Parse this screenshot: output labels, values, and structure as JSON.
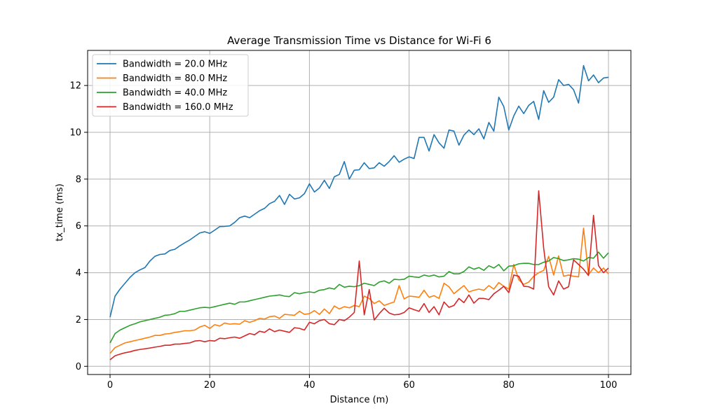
{
  "chart_data": {
    "type": "line",
    "title": "Average Transmission Time vs Distance for Wi-Fi 6",
    "xlabel": "Distance (m)",
    "ylabel": "tx_time (ms)",
    "xlim": [
      -4.5,
      104.5
    ],
    "ylim": [
      -0.35,
      13.5
    ],
    "xticks": [
      0,
      20,
      40,
      60,
      80,
      100
    ],
    "yticks": [
      0,
      2,
      4,
      6,
      8,
      10,
      12
    ],
    "grid": true,
    "legend_position": "top-left",
    "x": [
      0,
      1,
      2,
      3,
      4,
      5,
      6,
      7,
      8,
      9,
      10,
      11,
      12,
      13,
      14,
      15,
      16,
      17,
      18,
      19,
      20,
      21,
      22,
      23,
      24,
      25,
      26,
      27,
      28,
      29,
      30,
      31,
      32,
      33,
      34,
      35,
      36,
      37,
      38,
      39,
      40,
      41,
      42,
      43,
      44,
      45,
      46,
      47,
      48,
      49,
      50,
      51,
      52,
      53,
      54,
      55,
      56,
      57,
      58,
      59,
      60,
      61,
      62,
      63,
      64,
      65,
      66,
      67,
      68,
      69,
      70,
      71,
      72,
      73,
      74,
      75,
      76,
      77,
      78,
      79,
      80,
      81,
      82,
      83,
      84,
      85,
      86,
      87,
      88,
      89,
      90,
      91,
      92,
      93,
      94,
      95,
      96,
      97,
      98,
      99,
      100
    ],
    "series": [
      {
        "name": "Bandwidth = 20.0 MHz",
        "color": "#1f77b4",
        "values": [
          2.1,
          3.0,
          3.3,
          3.55,
          3.8,
          4.0,
          4.12,
          4.22,
          4.5,
          4.7,
          4.78,
          4.8,
          4.95,
          5.0,
          5.15,
          5.28,
          5.4,
          5.55,
          5.7,
          5.75,
          5.68,
          5.82,
          5.97,
          5.98,
          6.0,
          6.15,
          6.35,
          6.42,
          6.35,
          6.5,
          6.65,
          6.75,
          6.95,
          7.05,
          7.3,
          6.92,
          7.35,
          7.15,
          7.2,
          7.38,
          7.8,
          7.45,
          7.62,
          7.95,
          7.6,
          8.1,
          8.2,
          8.75,
          8.0,
          8.38,
          8.4,
          8.7,
          8.45,
          8.48,
          8.7,
          8.55,
          8.75,
          9.0,
          8.72,
          8.85,
          8.95,
          8.88,
          9.78,
          9.78,
          9.2,
          9.9,
          9.55,
          9.32,
          10.1,
          10.05,
          9.45,
          9.88,
          10.1,
          9.9,
          10.15,
          9.72,
          10.42,
          10.05,
          11.5,
          11.1,
          10.1,
          10.7,
          11.12,
          10.8,
          11.15,
          11.32,
          10.55,
          11.78,
          11.28,
          11.5,
          12.25,
          12.0,
          12.05,
          11.82,
          11.25,
          12.85,
          12.2,
          12.45,
          12.12,
          12.32,
          12.35
        ]
      },
      {
        "name": "Bandwidth = 80.0 MHz",
        "color": "#ff7f0e",
        "values": [
          0.55,
          0.8,
          0.9,
          1.0,
          1.05,
          1.1,
          1.15,
          1.2,
          1.25,
          1.32,
          1.32,
          1.38,
          1.4,
          1.45,
          1.48,
          1.52,
          1.52,
          1.55,
          1.68,
          1.75,
          1.62,
          1.78,
          1.72,
          1.85,
          1.8,
          1.82,
          1.8,
          1.95,
          1.88,
          1.95,
          2.05,
          2.02,
          2.12,
          2.15,
          2.05,
          2.22,
          2.2,
          2.18,
          2.35,
          2.22,
          2.25,
          2.38,
          2.22,
          2.45,
          2.25,
          2.58,
          2.45,
          2.55,
          2.5,
          2.6,
          2.55,
          3.0,
          2.9,
          2.68,
          2.8,
          2.6,
          2.68,
          2.75,
          3.45,
          2.88,
          3.0,
          2.98,
          2.95,
          3.25,
          2.95,
          3.02,
          2.9,
          3.55,
          3.4,
          3.1,
          3.28,
          3.45,
          3.18,
          3.25,
          3.3,
          3.25,
          3.45,
          3.3,
          3.58,
          3.42,
          3.3,
          4.35,
          3.7,
          3.5,
          3.6,
          3.85,
          4.0,
          4.1,
          4.7,
          3.9,
          4.72,
          3.85,
          3.9,
          3.85,
          3.82,
          5.9,
          3.92,
          4.2,
          4.0,
          4.2,
          3.95
        ]
      },
      {
        "name": "Bandwidth = 40.0 MHz",
        "color": "#2ca02c",
        "values": [
          1.0,
          1.4,
          1.55,
          1.65,
          1.75,
          1.82,
          1.9,
          1.95,
          2.0,
          2.05,
          2.1,
          2.18,
          2.2,
          2.25,
          2.35,
          2.35,
          2.4,
          2.45,
          2.5,
          2.52,
          2.5,
          2.55,
          2.6,
          2.65,
          2.7,
          2.65,
          2.75,
          2.75,
          2.8,
          2.85,
          2.9,
          2.95,
          3.0,
          3.02,
          3.05,
          3.0,
          2.98,
          3.15,
          3.1,
          3.15,
          3.18,
          3.15,
          3.25,
          3.28,
          3.35,
          3.3,
          3.5,
          3.38,
          3.42,
          3.4,
          3.45,
          3.55,
          3.5,
          3.45,
          3.6,
          3.65,
          3.55,
          3.72,
          3.7,
          3.72,
          3.85,
          3.82,
          3.8,
          3.9,
          3.85,
          3.9,
          3.82,
          3.85,
          4.05,
          3.95,
          3.95,
          4.05,
          4.25,
          4.15,
          4.22,
          4.1,
          4.3,
          4.2,
          4.35,
          4.08,
          4.28,
          4.3,
          4.38,
          4.4,
          4.4,
          4.35,
          4.35,
          4.45,
          4.5,
          4.65,
          4.6,
          4.52,
          4.55,
          4.6,
          4.58,
          4.5,
          4.65,
          4.62,
          4.88,
          4.62,
          4.85
        ]
      },
      {
        "name": "Bandwidth = 160.0 MHz",
        "color": "#d62728",
        "values": [
          0.28,
          0.45,
          0.52,
          0.58,
          0.62,
          0.68,
          0.72,
          0.75,
          0.78,
          0.82,
          0.85,
          0.9,
          0.9,
          0.95,
          0.95,
          0.98,
          1.0,
          1.08,
          1.1,
          1.05,
          1.1,
          1.08,
          1.2,
          1.18,
          1.22,
          1.25,
          1.2,
          1.3,
          1.4,
          1.35,
          1.5,
          1.45,
          1.6,
          1.48,
          1.55,
          1.5,
          1.45,
          1.65,
          1.62,
          1.55,
          1.88,
          1.82,
          1.95,
          2.0,
          1.82,
          1.78,
          2.0,
          1.95,
          2.1,
          2.3,
          4.5,
          2.2,
          3.28,
          1.98,
          2.25,
          2.48,
          2.28,
          2.2,
          2.22,
          2.3,
          2.5,
          2.42,
          2.35,
          2.68,
          2.3,
          2.55,
          2.2,
          2.75,
          2.52,
          2.6,
          2.9,
          2.72,
          3.05,
          2.7,
          2.9,
          2.9,
          2.85,
          3.1,
          3.25,
          3.42,
          3.15,
          3.9,
          3.85,
          3.42,
          3.4,
          3.3,
          7.5,
          5.05,
          3.4,
          3.05,
          3.65,
          3.3,
          3.4,
          4.55,
          4.35,
          4.15,
          3.88,
          6.45,
          4.3,
          4.0,
          4.2
        ]
      }
    ]
  }
}
